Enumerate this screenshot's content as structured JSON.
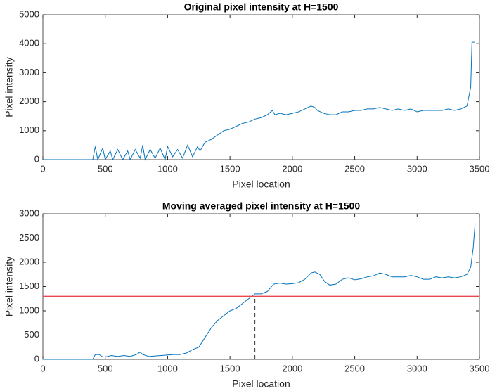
{
  "chart_data": [
    {
      "type": "line",
      "title": "Original pixel intensity at H=1500",
      "xlabel": "Pixel location",
      "ylabel": "Pixel intensity",
      "xlim": [
        0,
        3500
      ],
      "xticks": [
        0,
        500,
        1000,
        1500,
        2000,
        2500,
        3000,
        3500
      ],
      "ylim": [
        0,
        5000
      ],
      "yticks": [
        0,
        1000,
        2000,
        3000,
        4000,
        5000
      ],
      "x": [
        0,
        400,
        420,
        440,
        480,
        500,
        540,
        560,
        600,
        640,
        680,
        700,
        740,
        780,
        800,
        820,
        860,
        900,
        940,
        980,
        1000,
        1040,
        1080,
        1120,
        1160,
        1200,
        1240,
        1260,
        1300,
        1350,
        1400,
        1450,
        1500,
        1550,
        1600,
        1650,
        1700,
        1750,
        1800,
        1840,
        1860,
        1900,
        1950,
        2000,
        2050,
        2100,
        2150,
        2180,
        2200,
        2250,
        2300,
        2350,
        2400,
        2450,
        2500,
        2550,
        2600,
        2650,
        2700,
        2750,
        2800,
        2850,
        2900,
        2950,
        3000,
        3050,
        3100,
        3150,
        3200,
        3250,
        3300,
        3350,
        3400,
        3430,
        3440,
        3460
      ],
      "series": [
        {
          "color": "#0072bd",
          "values": [
            0,
            0,
            450,
            0,
            400,
            0,
            300,
            0,
            350,
            0,
            300,
            0,
            350,
            50,
            500,
            0,
            350,
            50,
            400,
            0,
            450,
            100,
            350,
            50,
            500,
            100,
            450,
            300,
            600,
            700,
            850,
            1000,
            1050,
            1150,
            1250,
            1300,
            1400,
            1450,
            1550,
            1700,
            1550,
            1600,
            1550,
            1600,
            1650,
            1750,
            1850,
            1800,
            1700,
            1600,
            1550,
            1550,
            1650,
            1650,
            1700,
            1700,
            1750,
            1750,
            1800,
            1750,
            1700,
            1750,
            1700,
            1750,
            1650,
            1700,
            1700,
            1700,
            1700,
            1750,
            1700,
            1750,
            1850,
            2500,
            4050,
            4050
          ]
        }
      ]
    },
    {
      "type": "line",
      "title": "Moving averaged pixel intensity at H=1500",
      "xlabel": "Pixel location",
      "ylabel": "Pixel intensity",
      "xlim": [
        0,
        3500
      ],
      "xticks": [
        0,
        500,
        1000,
        1500,
        2000,
        2500,
        3000,
        3500
      ],
      "ylim": [
        0,
        3000
      ],
      "yticks": [
        0,
        500,
        1000,
        1500,
        2000,
        2500,
        3000
      ],
      "hline": 1300,
      "hline_color": "#e8484d",
      "vline": 1700,
      "x": [
        0,
        400,
        420,
        450,
        480,
        500,
        550,
        600,
        650,
        700,
        750,
        780,
        800,
        850,
        900,
        950,
        1000,
        1050,
        1100,
        1150,
        1200,
        1250,
        1300,
        1350,
        1400,
        1450,
        1500,
        1550,
        1600,
        1650,
        1700,
        1750,
        1800,
        1850,
        1900,
        1950,
        2000,
        2050,
        2100,
        2150,
        2180,
        2220,
        2260,
        2300,
        2350,
        2400,
        2450,
        2500,
        2550,
        2600,
        2650,
        2700,
        2750,
        2800,
        2850,
        2900,
        2950,
        3000,
        3050,
        3100,
        3150,
        3200,
        3250,
        3300,
        3350,
        3400,
        3430,
        3450,
        3465
      ],
      "series": [
        {
          "color": "#0072bd",
          "values": [
            0,
            0,
            100,
            100,
            50,
            50,
            80,
            60,
            80,
            60,
            100,
            150,
            100,
            60,
            70,
            80,
            90,
            100,
            100,
            130,
            200,
            250,
            450,
            650,
            800,
            900,
            1000,
            1050,
            1150,
            1250,
            1350,
            1350,
            1400,
            1550,
            1570,
            1550,
            1560,
            1580,
            1650,
            1780,
            1800,
            1750,
            1600,
            1530,
            1550,
            1650,
            1680,
            1640,
            1660,
            1700,
            1720,
            1780,
            1750,
            1700,
            1700,
            1700,
            1730,
            1700,
            1650,
            1650,
            1700,
            1680,
            1700,
            1680,
            1700,
            1750,
            1900,
            2300,
            2800
          ]
        }
      ]
    }
  ]
}
